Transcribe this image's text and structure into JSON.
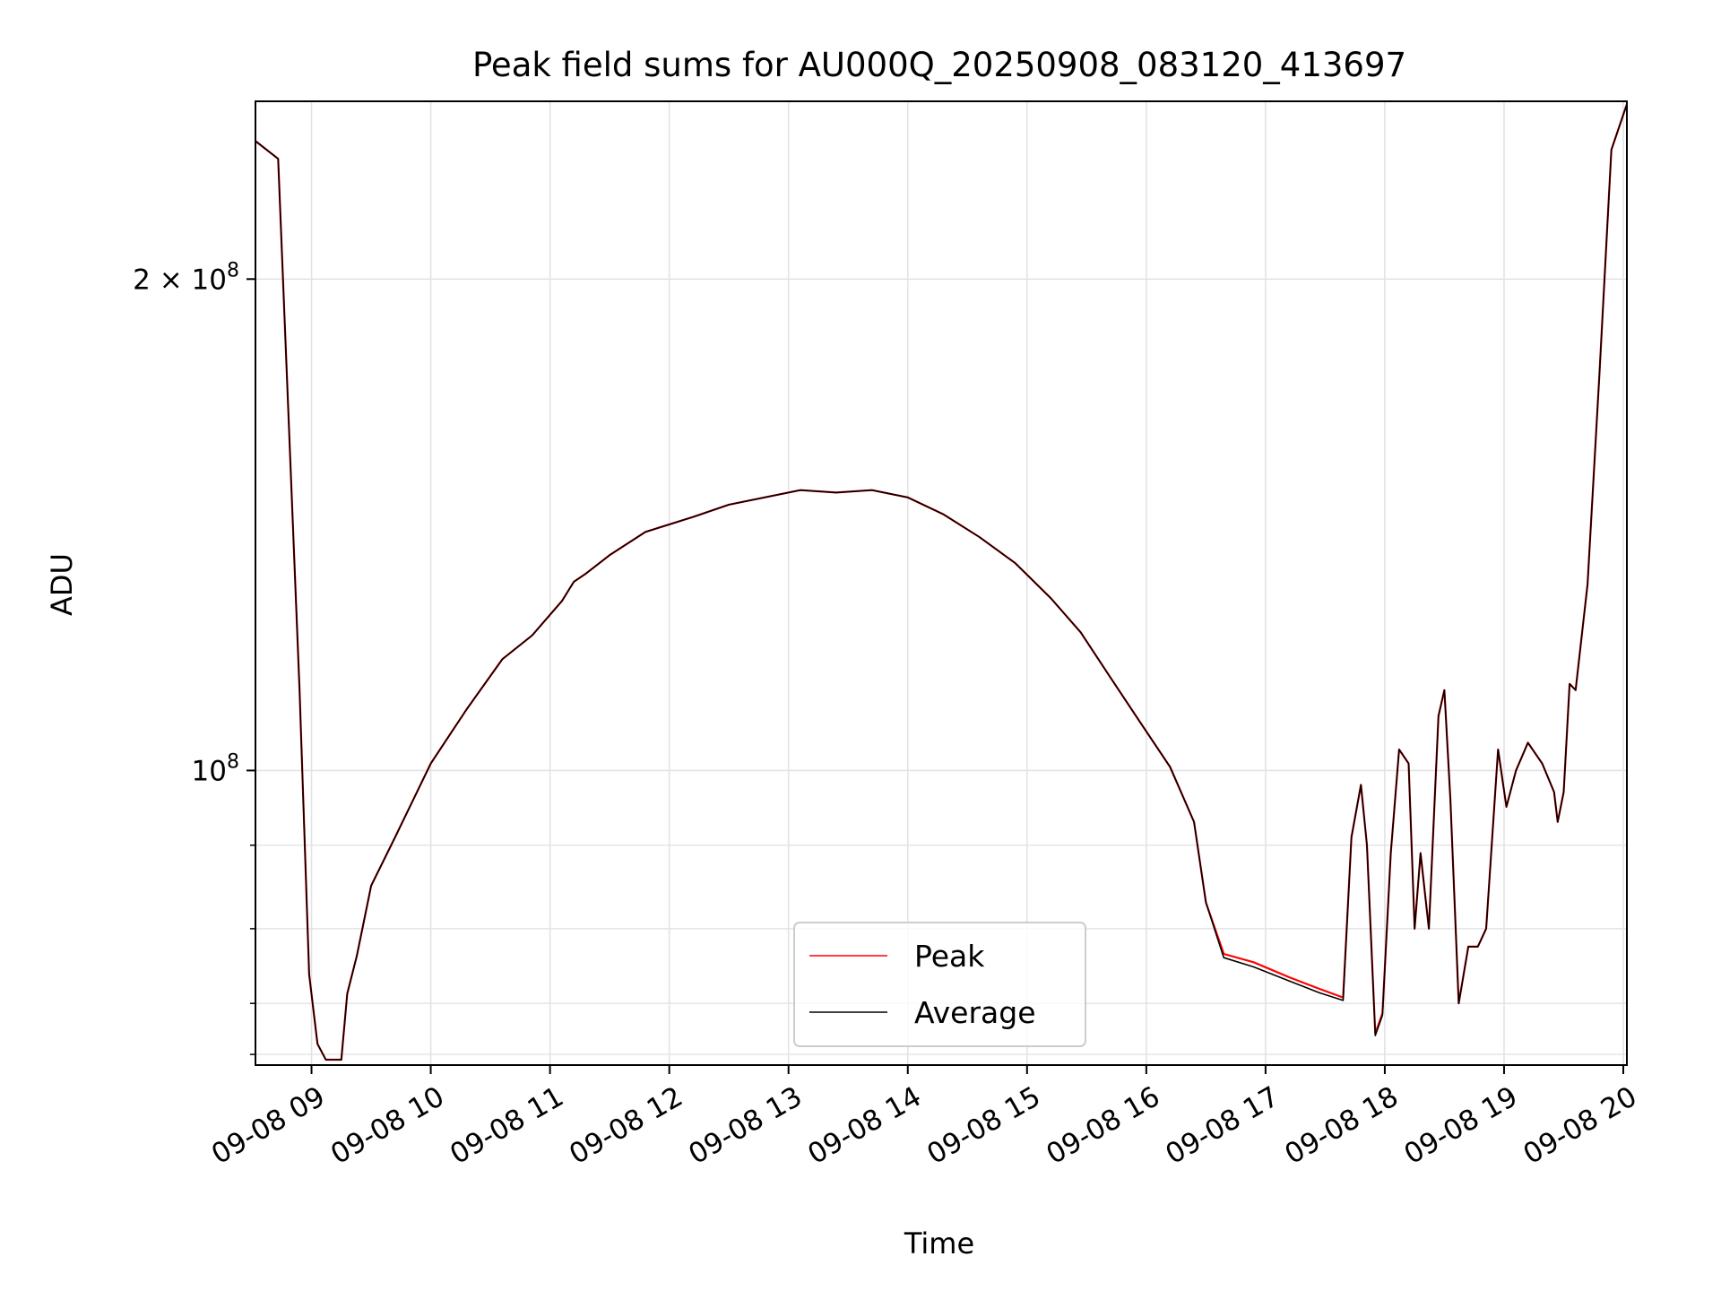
{
  "chart_data": {
    "type": "line",
    "title": "Peak field sums for AU000Q_20250908_083120_413697",
    "xlabel": "Time",
    "ylabel": "ADU",
    "x_unit": "hours of day, 2025-09-08",
    "x_ticks": [
      {
        "value": 9,
        "label": "09-08 09"
      },
      {
        "value": 10,
        "label": "09-08 10"
      },
      {
        "value": 11,
        "label": "09-08 11"
      },
      {
        "value": 12,
        "label": "09-08 12"
      },
      {
        "value": 13,
        "label": "09-08 13"
      },
      {
        "value": 14,
        "label": "09-08 14"
      },
      {
        "value": 15,
        "label": "09-08 15"
      },
      {
        "value": 16,
        "label": "09-08 16"
      },
      {
        "value": 17,
        "label": "09-08 17"
      },
      {
        "value": 18,
        "label": "09-08 18"
      },
      {
        "value": 19,
        "label": "09-08 19"
      },
      {
        "value": 20,
        "label": "09-08 20"
      }
    ],
    "xlim": [
      8.53,
      20.03
    ],
    "yscale": "log",
    "ylim": [
      66000000,
      257000000
    ],
    "y_major_ticks": [
      {
        "value": 100000000,
        "label_base": "10",
        "label_exp": "8"
      },
      {
        "value": 200000000,
        "label_base": "2 × 10",
        "label_exp": "8"
      }
    ],
    "y_minor_ticks": [
      67000000,
      72000000,
      80000000,
      90000000
    ],
    "grid": true,
    "legend_position": "lower center",
    "legend": [
      {
        "label": "Peak",
        "color": "#ff0000"
      },
      {
        "label": "Average",
        "color": "#000000"
      }
    ],
    "series": [
      {
        "name": "Peak",
        "color": "#ff0000",
        "points": [
          [
            8.53,
            243000000
          ],
          [
            8.72,
            237000000
          ],
          [
            8.9,
            112000000
          ],
          [
            8.98,
            75000000
          ],
          [
            9.05,
            68000000
          ],
          [
            9.12,
            66500000
          ],
          [
            9.25,
            66500000
          ],
          [
            9.3,
            73000000
          ],
          [
            9.38,
            77000000
          ],
          [
            9.5,
            85000000
          ],
          [
            9.7,
            91000000
          ],
          [
            10.0,
            101000000
          ],
          [
            10.3,
            109000000
          ],
          [
            10.6,
            117000000
          ],
          [
            10.85,
            121000000
          ],
          [
            11.1,
            127000000
          ],
          [
            11.2,
            130500000
          ],
          [
            11.3,
            132000000
          ],
          [
            11.5,
            135500000
          ],
          [
            11.8,
            140000000
          ],
          [
            12.2,
            143000000
          ],
          [
            12.5,
            145500000
          ],
          [
            12.8,
            147000000
          ],
          [
            13.1,
            148500000
          ],
          [
            13.4,
            148000000
          ],
          [
            13.7,
            148500000
          ],
          [
            14.0,
            147000000
          ],
          [
            14.3,
            143500000
          ],
          [
            14.6,
            139000000
          ],
          [
            14.9,
            134000000
          ],
          [
            15.2,
            127500000
          ],
          [
            15.45,
            121500000
          ],
          [
            15.7,
            114000000
          ],
          [
            15.95,
            107000000
          ],
          [
            16.2,
            100500000
          ],
          [
            16.4,
            93000000
          ],
          [
            16.5,
            83000000
          ],
          [
            16.65,
            77200000
          ],
          [
            16.9,
            76300000
          ],
          [
            17.2,
            74700000
          ],
          [
            17.45,
            73500000
          ],
          [
            17.65,
            72600000
          ],
          [
            17.72,
            91000000
          ],
          [
            17.8,
            98000000
          ],
          [
            17.85,
            90000000
          ],
          [
            17.92,
            69000000
          ],
          [
            17.98,
            71000000
          ],
          [
            18.05,
            89000000
          ],
          [
            18.12,
            103000000
          ],
          [
            18.2,
            101000000
          ],
          [
            18.25,
            80000000
          ],
          [
            18.3,
            89000000
          ],
          [
            18.37,
            80000000
          ],
          [
            18.45,
            108000000
          ],
          [
            18.5,
            112000000
          ],
          [
            18.55,
            96000000
          ],
          [
            18.62,
            72000000
          ],
          [
            18.7,
            78000000
          ],
          [
            18.78,
            78000000
          ],
          [
            18.85,
            80000000
          ],
          [
            18.95,
            103000000
          ],
          [
            19.02,
            95000000
          ],
          [
            19.1,
            100000000
          ],
          [
            19.2,
            104000000
          ],
          [
            19.32,
            101000000
          ],
          [
            19.42,
            97000000
          ],
          [
            19.45,
            93000000
          ],
          [
            19.5,
            97000000
          ],
          [
            19.55,
            113000000
          ],
          [
            19.6,
            112000000
          ],
          [
            19.7,
            130000000
          ],
          [
            19.8,
            175000000
          ],
          [
            19.9,
            240000000
          ],
          [
            20.03,
            256000000
          ]
        ]
      },
      {
        "name": "Average",
        "color": "#000000",
        "points": [
          [
            8.53,
            243000000
          ],
          [
            8.72,
            237000000
          ],
          [
            8.9,
            112000000
          ],
          [
            8.98,
            75000000
          ],
          [
            9.05,
            68000000
          ],
          [
            9.12,
            66500000
          ],
          [
            9.25,
            66500000
          ],
          [
            9.3,
            73000000
          ],
          [
            9.38,
            77000000
          ],
          [
            9.5,
            85000000
          ],
          [
            9.7,
            91000000
          ],
          [
            10.0,
            101000000
          ],
          [
            10.3,
            109000000
          ],
          [
            10.6,
            117000000
          ],
          [
            10.85,
            121000000
          ],
          [
            11.1,
            127000000
          ],
          [
            11.2,
            130500000
          ],
          [
            11.3,
            132000000
          ],
          [
            11.5,
            135500000
          ],
          [
            11.8,
            140000000
          ],
          [
            12.2,
            143000000
          ],
          [
            12.5,
            145500000
          ],
          [
            12.8,
            147000000
          ],
          [
            13.1,
            148500000
          ],
          [
            13.4,
            148000000
          ],
          [
            13.7,
            148500000
          ],
          [
            14.0,
            147000000
          ],
          [
            14.3,
            143500000
          ],
          [
            14.6,
            139000000
          ],
          [
            14.9,
            134000000
          ],
          [
            15.2,
            127500000
          ],
          [
            15.45,
            121500000
          ],
          [
            15.7,
            114000000
          ],
          [
            15.95,
            107000000
          ],
          [
            16.2,
            100500000
          ],
          [
            16.4,
            93000000
          ],
          [
            16.5,
            83000000
          ],
          [
            16.65,
            76800000
          ],
          [
            16.9,
            75800000
          ],
          [
            17.2,
            74300000
          ],
          [
            17.45,
            73100000
          ],
          [
            17.65,
            72300000
          ],
          [
            17.72,
            91000000
          ],
          [
            17.8,
            98000000
          ],
          [
            17.85,
            90000000
          ],
          [
            17.92,
            68800000
          ],
          [
            17.98,
            70800000
          ],
          [
            18.05,
            89000000
          ],
          [
            18.12,
            103000000
          ],
          [
            18.2,
            101000000
          ],
          [
            18.25,
            80000000
          ],
          [
            18.3,
            89000000
          ],
          [
            18.37,
            80000000
          ],
          [
            18.45,
            108000000
          ],
          [
            18.5,
            112000000
          ],
          [
            18.55,
            96000000
          ],
          [
            18.62,
            72000000
          ],
          [
            18.7,
            78000000
          ],
          [
            18.78,
            78000000
          ],
          [
            18.85,
            80000000
          ],
          [
            18.95,
            103000000
          ],
          [
            19.02,
            95000000
          ],
          [
            19.1,
            100000000
          ],
          [
            19.2,
            104000000
          ],
          [
            19.32,
            101000000
          ],
          [
            19.42,
            97000000
          ],
          [
            19.45,
            93000000
          ],
          [
            19.5,
            97000000
          ],
          [
            19.55,
            113000000
          ],
          [
            19.6,
            112000000
          ],
          [
            19.7,
            130000000
          ],
          [
            19.8,
            175000000
          ],
          [
            19.9,
            240000000
          ],
          [
            20.03,
            256000000
          ]
        ]
      }
    ]
  }
}
